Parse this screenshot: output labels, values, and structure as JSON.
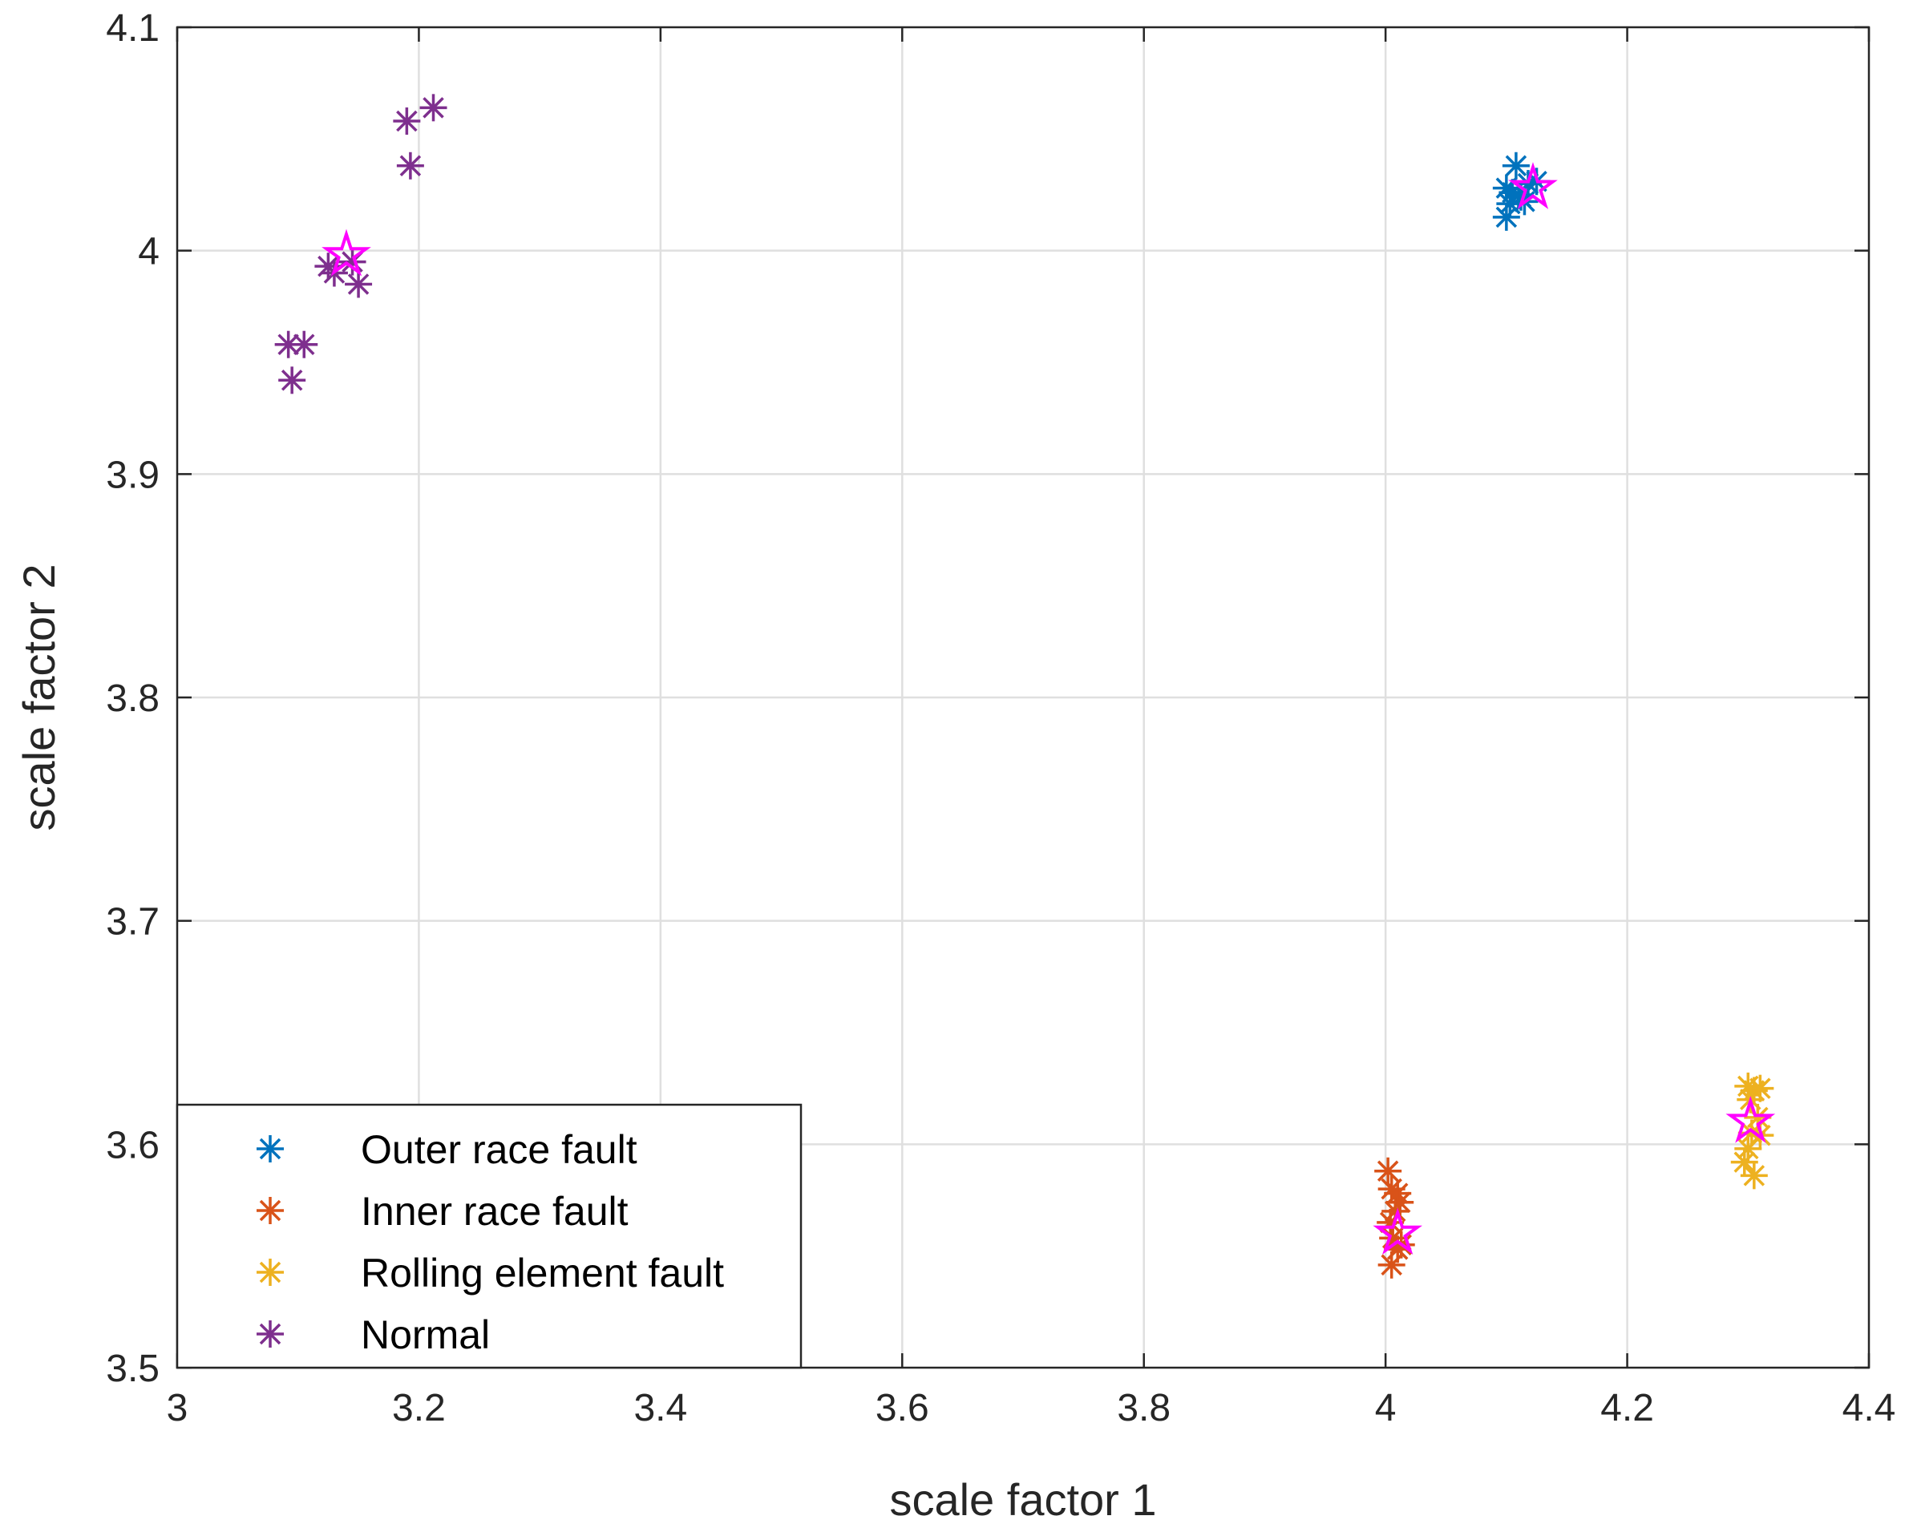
{
  "chart_data": {
    "type": "scatter",
    "title": "",
    "xlabel": "scale factor 1",
    "ylabel": "scale factor 2",
    "xlim": [
      3,
      4.4
    ],
    "ylim": [
      3.5,
      4.1
    ],
    "xticks": [
      3,
      3.2,
      3.4,
      3.6,
      3.8,
      4,
      4.2,
      4.4
    ],
    "xtick_labels": [
      "3",
      "3.2",
      "3.4",
      "3.6",
      "3.8",
      "4",
      "4.2",
      "4.4"
    ],
    "yticks": [
      3.5,
      3.6,
      3.7,
      3.8,
      3.9,
      4.0,
      4.1
    ],
    "ytick_labels": [
      "3.5",
      "3.6",
      "3.7",
      "3.8",
      "3.9",
      "4",
      "4.1"
    ],
    "grid": true,
    "legend_position": "bottom-left",
    "marker": "asterisk",
    "series": [
      {
        "name": "Outer race fault",
        "color": "#0072BD",
        "x": [
          4.108,
          4.1,
          4.105,
          4.112,
          4.118,
          4.125,
          4.103,
          4.1,
          4.115,
          4.11
        ],
        "y": [
          4.038,
          4.028,
          4.026,
          4.024,
          4.03,
          4.031,
          4.021,
          4.015,
          4.022,
          4.025
        ]
      },
      {
        "name": "Inner race fault",
        "color": "#D95319",
        "x": [
          4.002,
          4.005,
          4.01,
          4.012,
          4.008,
          4.004,
          4.006,
          4.013,
          4.01,
          4.005
        ],
        "y": [
          3.588,
          3.58,
          3.578,
          3.574,
          3.57,
          3.565,
          3.558,
          3.555,
          3.553,
          3.546
        ]
      },
      {
        "name": "Rolling element fault",
        "color": "#EDB120",
        "x": [
          4.3,
          4.305,
          4.31,
          4.302,
          4.308,
          4.303,
          4.3,
          4.297,
          4.305,
          4.31
        ],
        "y": [
          3.626,
          3.624,
          3.625,
          3.62,
          3.612,
          3.605,
          3.598,
          3.592,
          3.586,
          3.604
        ]
      },
      {
        "name": "Normal",
        "color": "#7E2F8E",
        "x": [
          3.092,
          3.105,
          3.095,
          3.125,
          3.13,
          3.15,
          3.145,
          3.19,
          3.212,
          3.193
        ],
        "y": [
          3.958,
          3.958,
          3.942,
          3.993,
          3.99,
          3.985,
          3.995,
          4.058,
          4.064,
          4.038
        ]
      }
    ],
    "centroids": {
      "color": "#FF00FF",
      "marker": "pentagram",
      "x": [
        4.122,
        4.01,
        4.302,
        3.14
      ],
      "y": [
        4.028,
        3.56,
        3.61,
        3.998
      ]
    }
  }
}
